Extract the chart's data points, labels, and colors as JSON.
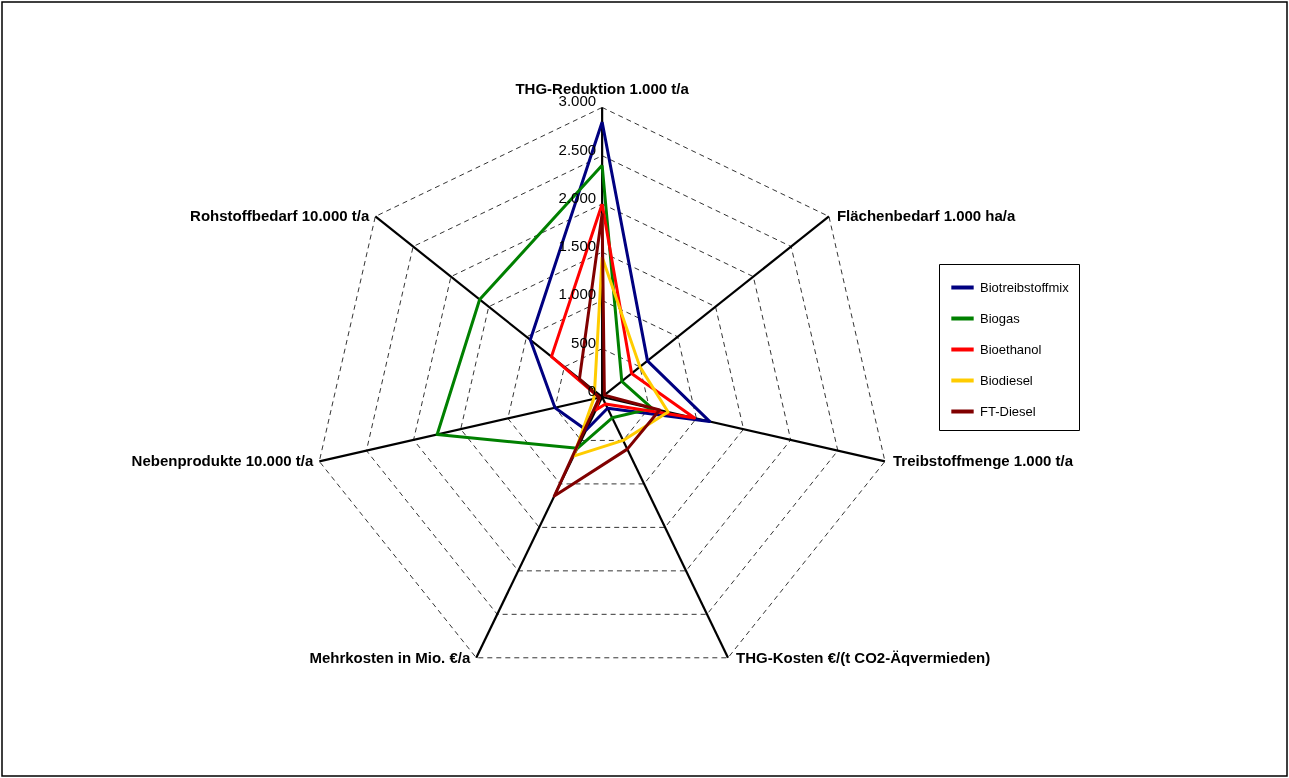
{
  "chart_data": {
    "type": "radar",
    "categories": [
      "THG-Reduktion 1.000 t/a",
      "Flächenbedarf 1.000 ha/a",
      "Treibstoffmenge 1.000 t/a",
      "THG-Kosten €/(t CO2-Äqvermieden)",
      "Mehrkosten in Mio. €/a",
      "Nebenprodukte 10.000 t/a",
      "Rohstoffbedarf 10.000 t/a"
    ],
    "series": [
      {
        "name": "Biotreibstoffmix",
        "color": "#000080",
        "values": [
          2850,
          600,
          1140,
          130,
          380,
          500,
          950
        ]
      },
      {
        "name": "Biogas",
        "color": "#008000",
        "values": [
          2400,
          260,
          530,
          240,
          590,
          1750,
          1620
        ]
      },
      {
        "name": "Bioethanol",
        "color": "#ff0000",
        "values": [
          2000,
          390,
          980,
          80,
          150,
          30,
          670
        ]
      },
      {
        "name": "Biodiesel",
        "color": "#ffcc00",
        "values": [
          1450,
          500,
          700,
          500,
          680,
          90,
          100
        ]
      },
      {
        "name": "FT-Diesel",
        "color": "#800000",
        "values": [
          1900,
          30,
          610,
          600,
          1140,
          30,
          300
        ]
      }
    ],
    "ylim": [
      0,
      3000
    ],
    "yticks": [
      {
        "value": 0,
        "label": "0"
      },
      {
        "value": 500,
        "label": "500"
      },
      {
        "value": 1000,
        "label": "1.000"
      },
      {
        "value": 1500,
        "label": "1.500"
      },
      {
        "value": 2000,
        "label": "2.000"
      },
      {
        "value": 2500,
        "label": "2.500"
      },
      {
        "value": 3000,
        "label": "3.000"
      }
    ],
    "grid": true,
    "legend": "right",
    "marker": "none",
    "line_style": "solid"
  }
}
